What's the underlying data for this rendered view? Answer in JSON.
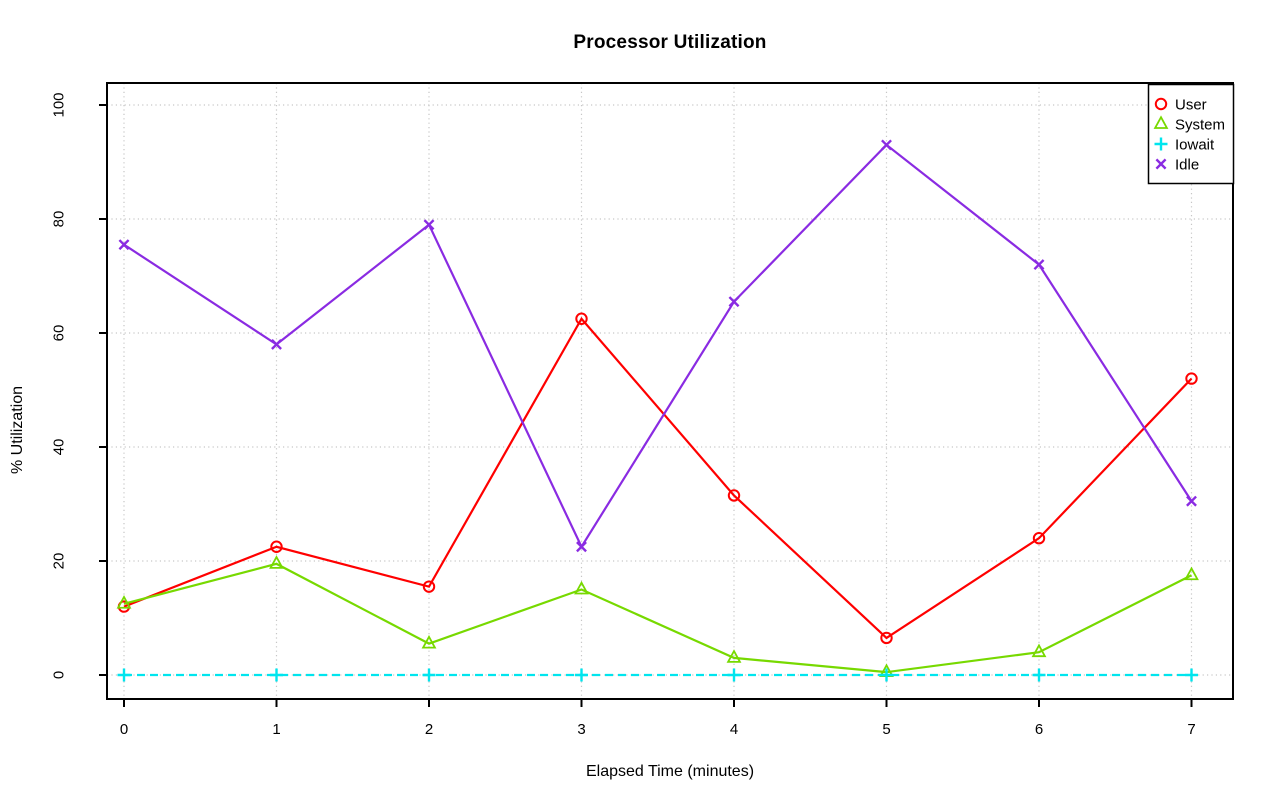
{
  "chart_data": {
    "type": "line",
    "title": "Processor Utilization",
    "xlabel": "Elapsed Time (minutes)",
    "ylabel": "% Utilization",
    "x": [
      0,
      1,
      2,
      3,
      4,
      5,
      6,
      7
    ],
    "xticks": [
      0,
      1,
      2,
      3,
      4,
      5,
      6,
      7
    ],
    "yticks": [
      0,
      20,
      40,
      60,
      80,
      100
    ],
    "xlim": [
      -0.28,
      7.28
    ],
    "ylim": [
      0,
      100
    ],
    "grid": "dotted",
    "grid_color": "#c6c6c6",
    "legend_position": "top-right",
    "series": [
      {
        "name": "User",
        "color": "#ff0000",
        "marker": "circle",
        "dash": false,
        "values": [
          12,
          22.5,
          15.5,
          62.5,
          31.5,
          6.5,
          24,
          52
        ]
      },
      {
        "name": "System",
        "color": "#77d900",
        "marker": "triangle",
        "dash": false,
        "values": [
          12.5,
          19.5,
          5.5,
          15,
          3,
          0.5,
          4,
          17.5
        ]
      },
      {
        "name": "Iowait",
        "color": "#00e5ee",
        "marker": "plus",
        "dash": true,
        "values": [
          0,
          0,
          0,
          0,
          0,
          0,
          0,
          0
        ]
      },
      {
        "name": "Idle",
        "color": "#8a2be2",
        "marker": "x",
        "dash": false,
        "values": [
          75.5,
          58,
          79,
          22.5,
          65.5,
          93,
          72,
          30.5
        ]
      }
    ]
  }
}
